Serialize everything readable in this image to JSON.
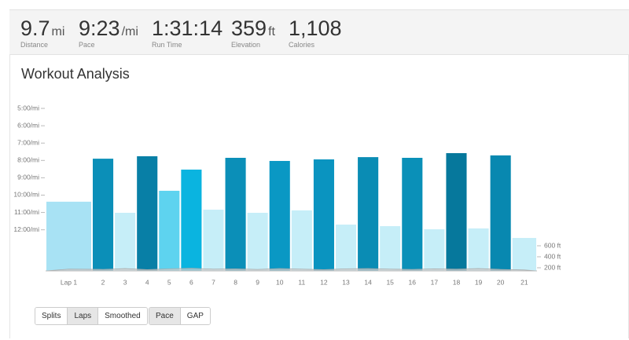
{
  "stats": [
    {
      "value": "9.7",
      "unit": "mi",
      "label": "Distance"
    },
    {
      "value": "9:23",
      "unit": "/mi",
      "label": "Pace"
    },
    {
      "value": "1:31:14",
      "label": "Run Time"
    },
    {
      "value": "359",
      "unit": "ft",
      "label": "Elevation"
    },
    {
      "value": "1,108",
      "label": "Calories"
    }
  ],
  "section_title": "Workout Analysis",
  "chart_data": {
    "type": "bar",
    "categories": [
      "Lap 1",
      "2",
      "3",
      "4",
      "5",
      "6",
      "7",
      "8",
      "9",
      "10",
      "11",
      "12",
      "13",
      "14",
      "15",
      "16",
      "17",
      "18",
      "19",
      "20",
      "21"
    ],
    "values": [
      10.38,
      7.9,
      11.02,
      7.76,
      9.75,
      8.53,
      10.84,
      7.85,
      11.02,
      8.03,
      10.88,
      7.94,
      11.7,
      7.81,
      11.79,
      7.85,
      11.97,
      7.58,
      11.92,
      7.71,
      12.47
    ],
    "colors": [
      "#a8e2f4",
      "#0b8fb8",
      "#c6eef8",
      "#087fa6",
      "#5ed3ef",
      "#0ab4e0",
      "#c6eef8",
      "#0b8fb8",
      "#c6eef8",
      "#0a98c4",
      "#c6eef8",
      "#0a94c0",
      "#c6eef8",
      "#0a8cb4",
      "#c6eef8",
      "#0a90b8",
      "#c6eef8",
      "#06789c",
      "#c6eef8",
      "#0888b0",
      "#c6eef8"
    ],
    "ylim": [
      4.5,
      14.37
    ],
    "yticks": [
      {
        "value": 5,
        "label": "5:00/mi"
      },
      {
        "value": 6,
        "label": "6:00/mi"
      },
      {
        "value": 7,
        "label": "7:00/mi"
      },
      {
        "value": 8,
        "label": "8:00/mi"
      },
      {
        "value": 9,
        "label": "9:00/mi"
      },
      {
        "value": 10,
        "label": "10:00/mi"
      },
      {
        "value": 11,
        "label": "11:00/mi"
      },
      {
        "value": 12,
        "label": "12:00/mi"
      }
    ],
    "elevation": {
      "axis": "y2",
      "color": "#d0d0d0",
      "values": [
        175,
        170,
        185,
        165,
        180,
        190,
        175,
        180,
        170,
        185,
        175,
        165,
        180,
        185,
        175,
        170,
        180,
        175,
        185,
        170,
        160
      ]
    },
    "y2lim": [
      143,
      3257
    ],
    "y2ticks": [
      {
        "value": 200,
        "label": "200 ft"
      },
      {
        "value": 400,
        "label": "400 ft"
      },
      {
        "value": 600,
        "label": "600 ft"
      }
    ]
  },
  "buttons": [
    {
      "labels": [
        "Splits",
        "Laps",
        "Smoothed"
      ],
      "active": 1
    },
    {
      "labels": [
        "Pace",
        "GAP"
      ],
      "active": 0
    }
  ]
}
